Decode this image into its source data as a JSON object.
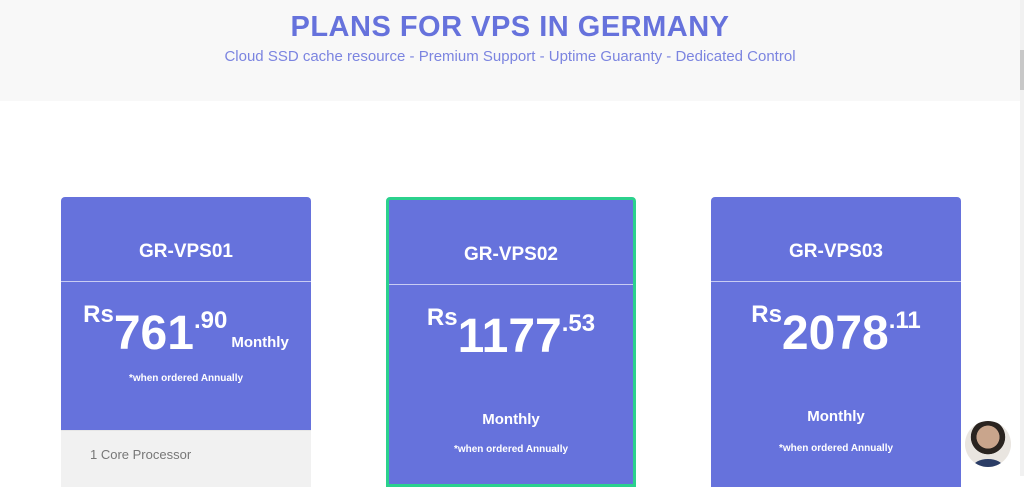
{
  "header": {
    "title": "PLANS FOR VPS IN GERMANY",
    "subtitle": "Cloud SSD cache resource - Premium Support - Uptime Guaranty - Dedicated Control"
  },
  "plans": [
    {
      "name": "GR-VPS01",
      "currency": "Rs",
      "price_int": "761",
      "price_dec": ".90",
      "period": "Monthly",
      "note": "*when ordered Annually",
      "feature": "1 Core Processor",
      "featured": false
    },
    {
      "name": "GR-VPS02",
      "currency": "Rs",
      "price_int": "1177",
      "price_dec": ".53",
      "period": "Monthly",
      "note": "*when ordered Annually",
      "featured": true
    },
    {
      "name": "GR-VPS03",
      "currency": "Rs",
      "price_int": "2078",
      "price_dec": ".11",
      "period": "Monthly",
      "note": "*when ordered Annually",
      "featured": false
    }
  ],
  "colors": {
    "accent": "#6672dc",
    "featured_border": "#2bd18d"
  },
  "chat": {
    "icon": "support-avatar"
  }
}
